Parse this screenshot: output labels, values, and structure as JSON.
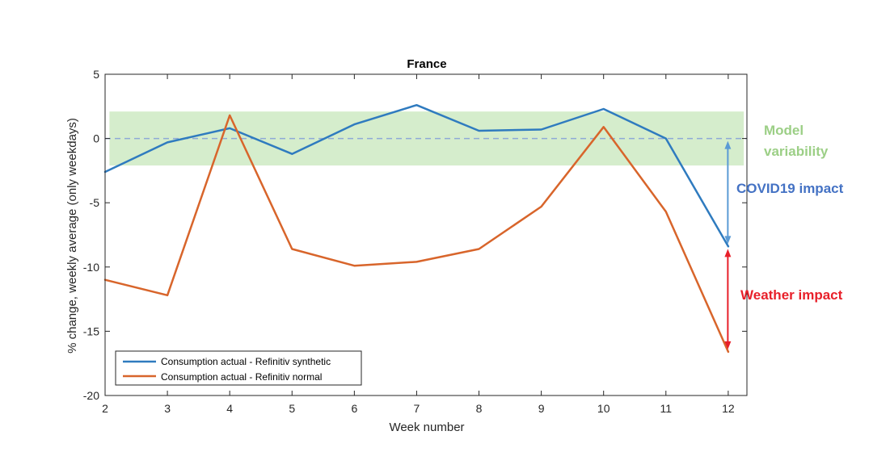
{
  "chart_data": {
    "type": "line",
    "title": "France",
    "xlabel": "Week number",
    "ylabel": "% change, weekly average (only weekdays)",
    "xlim": [
      2,
      12.3
    ],
    "ylim": [
      -20,
      5
    ],
    "xticks": [
      2,
      3,
      4,
      5,
      6,
      7,
      8,
      9,
      10,
      11,
      12
    ],
    "yticks": [
      -20,
      -15,
      -10,
      -5,
      0,
      5
    ],
    "x": [
      2,
      3,
      4,
      5,
      6,
      7,
      8,
      9,
      10,
      11,
      12
    ],
    "series": [
      {
        "name": "Consumption actual - Refinitiv synthetic",
        "color": "#2f7bbf",
        "values": [
          -2.6,
          -0.3,
          0.8,
          -1.2,
          1.1,
          2.6,
          0.6,
          0.7,
          2.3,
          0.0,
          -8.4
        ]
      },
      {
        "name": "Consumption actual - Refinitiv normal",
        "color": "#d8652b",
        "values": [
          -11.0,
          -12.2,
          1.8,
          -8.6,
          -9.9,
          -9.6,
          -8.6,
          -5.3,
          0.9,
          -5.7,
          -16.6
        ]
      }
    ],
    "band": {
      "from": -2.1,
      "to": 2.1,
      "color": "#d5edcc"
    },
    "zero_line": {
      "y": 0,
      "color": "#8ea9d6",
      "style": "dashed"
    },
    "legend_position": "bottom-left",
    "grid": false,
    "annotations": [
      {
        "text": "Model",
        "color": "#9ccf86"
      },
      {
        "text": "variability",
        "color": "#9ccf86"
      },
      {
        "text": "COVID19 impact",
        "color": "#4472c4",
        "arrow_from": 0,
        "arrow_to": -8.4,
        "arrow_color": "#5b9bd5"
      },
      {
        "text": "Weather impact",
        "color": "#e8202a",
        "arrow_from": -8.4,
        "arrow_to": -16.6,
        "arrow_color": "#e8202a"
      }
    ]
  }
}
